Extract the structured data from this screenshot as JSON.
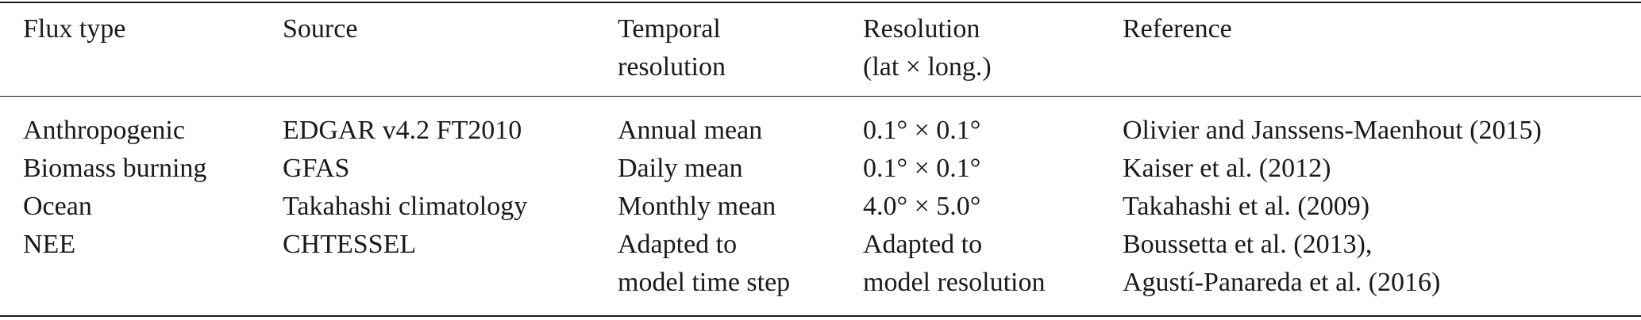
{
  "table": {
    "header": [
      [
        "Flux type"
      ],
      [
        "Source"
      ],
      [
        "Temporal",
        "resolution"
      ],
      [
        "Resolution",
        "(lat × long.)"
      ],
      [
        "Reference"
      ]
    ],
    "rows": [
      [
        [
          "Anthropogenic"
        ],
        [
          "EDGAR v4.2 FT2010"
        ],
        [
          "Annual mean"
        ],
        [
          "0.1° × 0.1°"
        ],
        [
          "Olivier and Janssens-Maenhout (2015)"
        ]
      ],
      [
        [
          "Biomass burning"
        ],
        [
          "GFAS"
        ],
        [
          "Daily mean"
        ],
        [
          "0.1° × 0.1°"
        ],
        [
          "Kaiser et al. (2012)"
        ]
      ],
      [
        [
          "Ocean"
        ],
        [
          "Takahashi climatology"
        ],
        [
          "Monthly mean"
        ],
        [
          "4.0° × 5.0°"
        ],
        [
          "Takahashi et al. (2009)"
        ]
      ],
      [
        [
          "NEE"
        ],
        [
          "CHTESSEL"
        ],
        [
          "Adapted to",
          "model time step"
        ],
        [
          "Adapted to",
          "model resolution"
        ],
        [
          "Boussetta et al. (2013),",
          "Agustí-Panareda et al. (2016)"
        ]
      ]
    ]
  }
}
